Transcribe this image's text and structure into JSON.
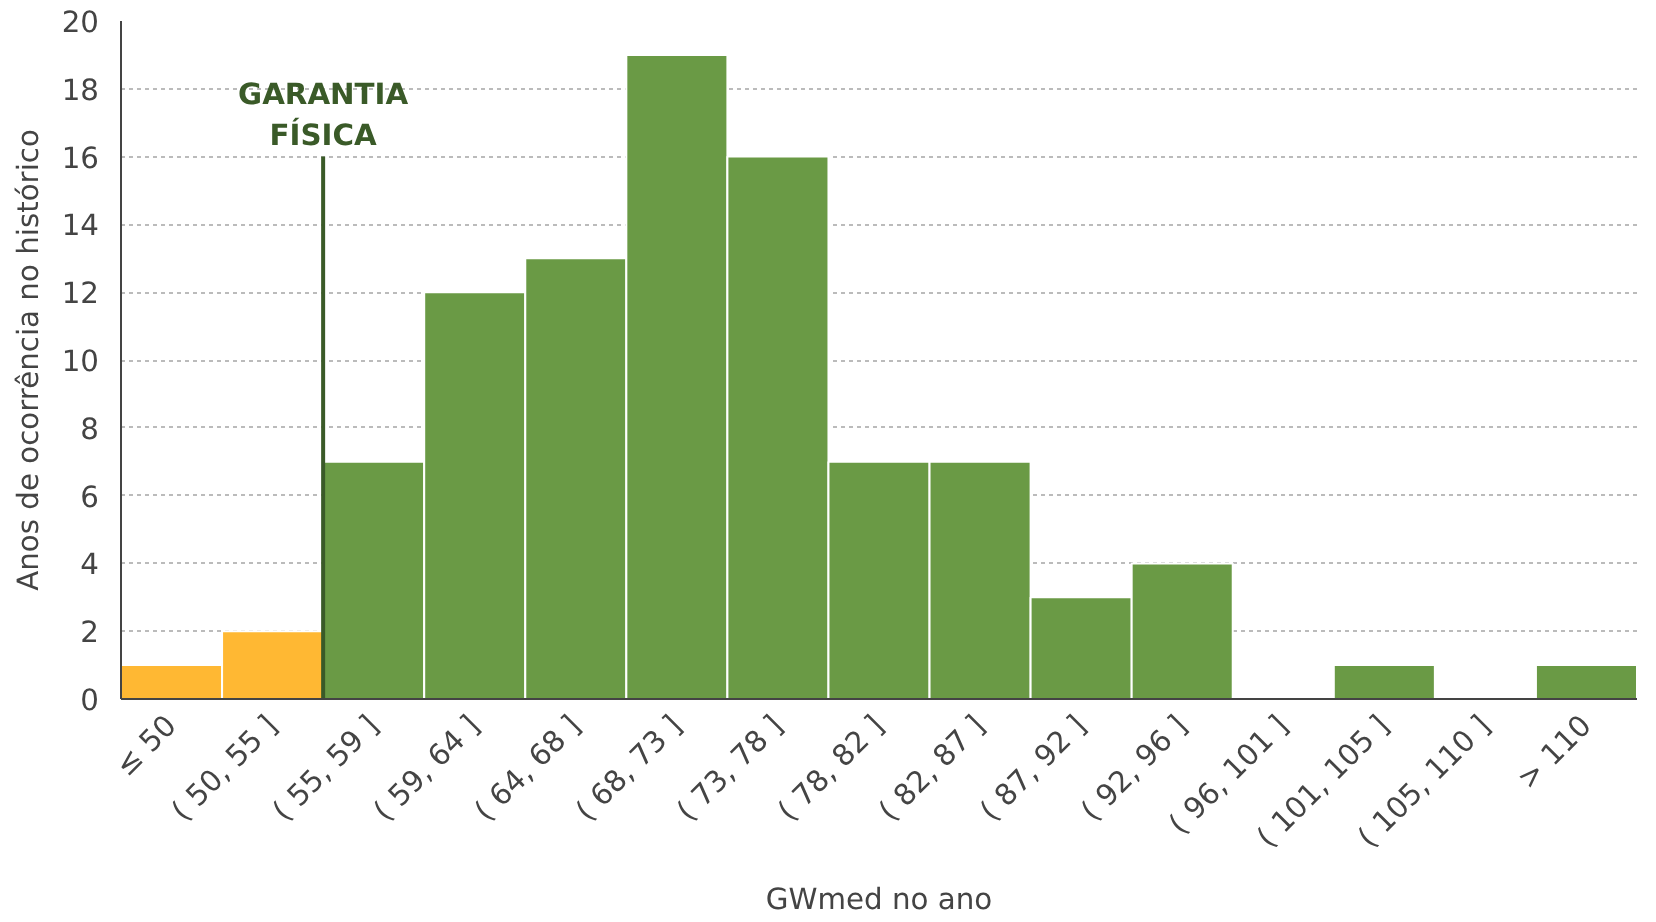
{
  "chart_data": {
    "type": "bar",
    "xlabel": "GWmed no ano",
    "ylabel": "Anos de ocorrência no histórico",
    "categories": [
      "≤ 50",
      "( 50, 55 ]",
      "( 55, 59 ]",
      "( 59, 64 ]",
      "( 64, 68 ]",
      "( 68, 73 ]",
      "( 73, 78 ]",
      "( 78, 82 ]",
      "( 82, 87 ]",
      "( 87, 92 ]",
      "( 92, 96 ]",
      "( 96, 101 ]",
      "( 101, 105 ]",
      "( 105, 110 ]",
      "> 110"
    ],
    "values": [
      1,
      2,
      7,
      12,
      13,
      19,
      16,
      7,
      7,
      3,
      4,
      0,
      1,
      0,
      1
    ],
    "colors": [
      "#ffb833",
      "#ffb833",
      "#6a9a45",
      "#6a9a45",
      "#6a9a45",
      "#6a9a45",
      "#6a9a45",
      "#6a9a45",
      "#6a9a45",
      "#6a9a45",
      "#6a9a45",
      "#6a9a45",
      "#6a9a45",
      "#6a9a45",
      "#6a9a45"
    ],
    "ylim": [
      0,
      20
    ],
    "yticks": [
      0,
      2,
      4,
      6,
      8,
      10,
      12,
      14,
      16,
      18,
      20
    ],
    "grid": "y",
    "ref_lines": [
      {
        "axis": "x",
        "value": "( 55, 59 ]",
        "label": "GARANTIA\nFÍSICA",
        "color": "#3a5a28"
      }
    ]
  }
}
